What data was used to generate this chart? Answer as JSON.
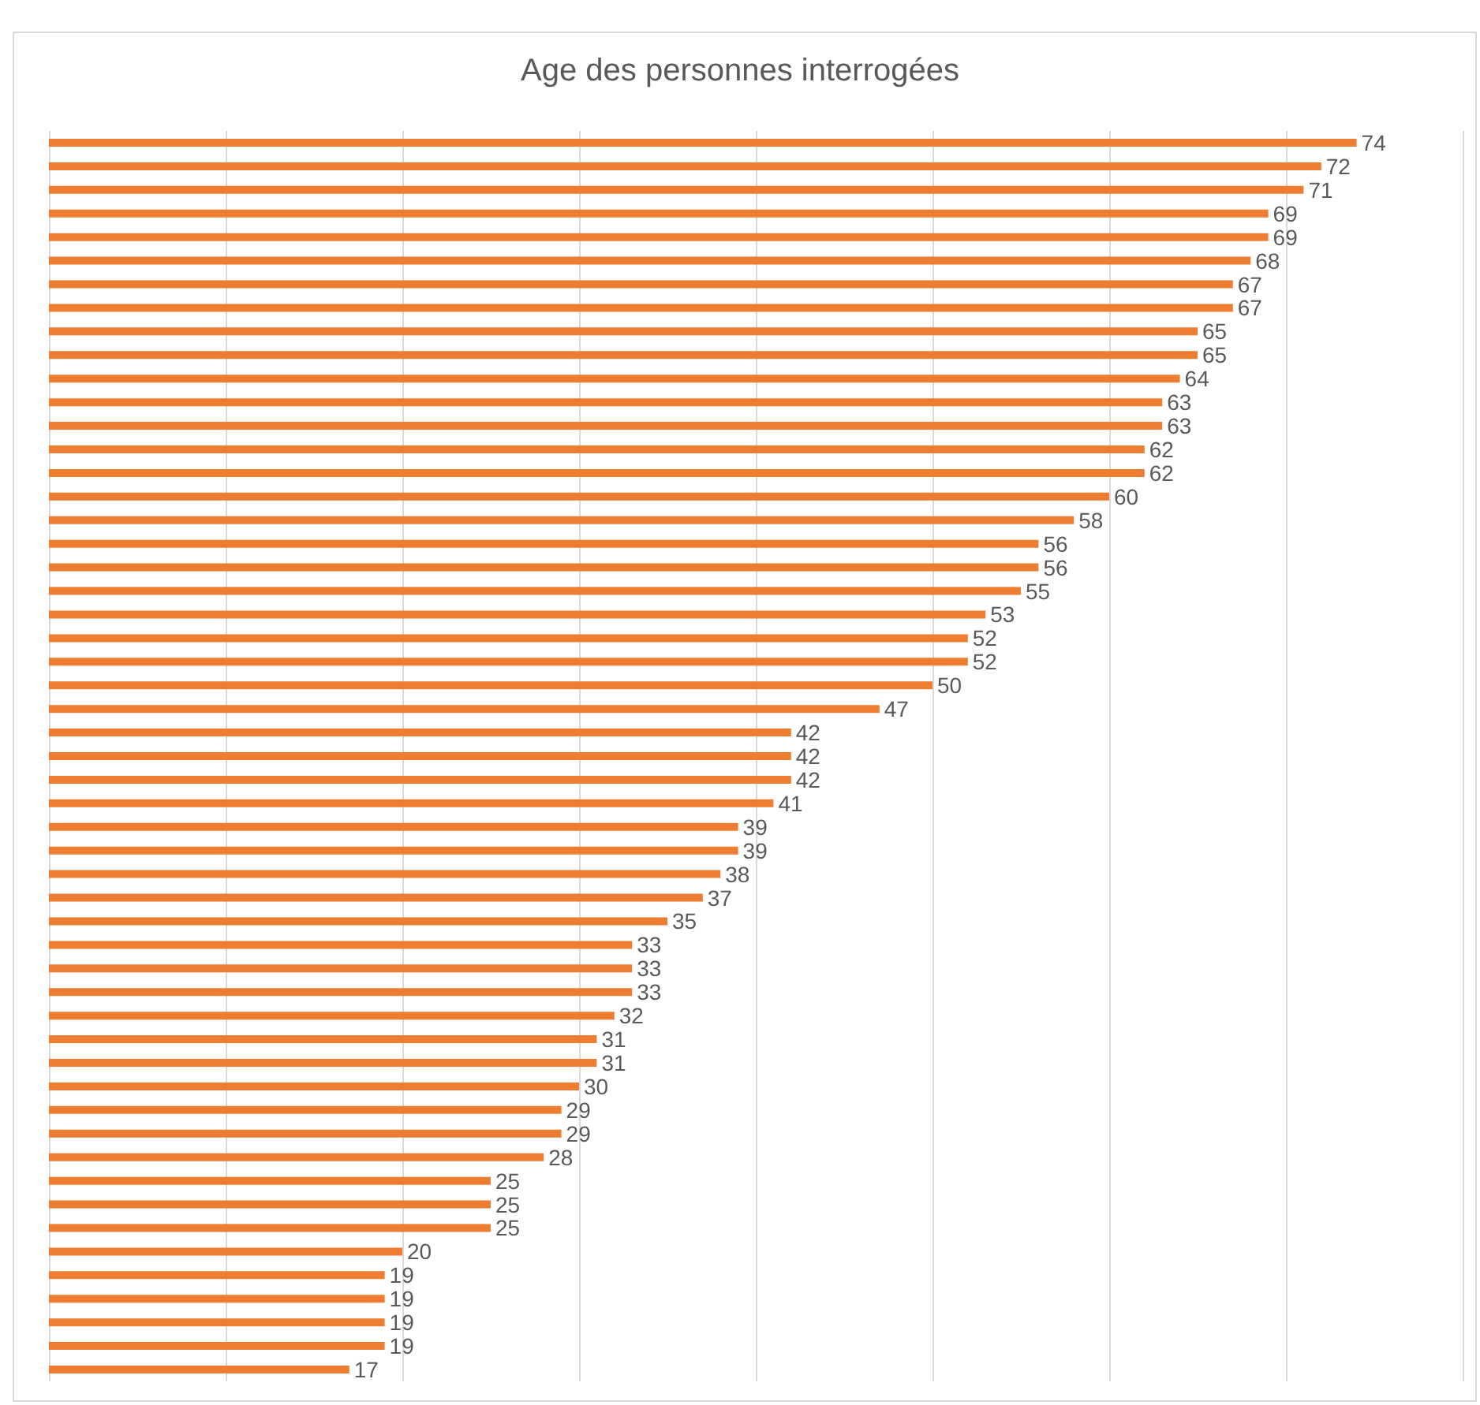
{
  "chart_data": {
    "type": "bar",
    "orientation": "horizontal",
    "title": "Age des personnes interrogées",
    "categories": [
      null,
      null,
      null,
      null,
      null,
      null,
      null,
      null,
      null,
      null,
      null,
      null,
      null,
      null,
      null,
      null,
      null,
      null,
      null,
      null,
      null,
      null,
      null,
      null,
      null,
      null,
      null,
      null,
      null,
      null,
      null,
      null,
      null,
      null,
      null,
      null,
      null,
      null,
      null,
      null,
      null,
      null,
      null,
      null,
      null,
      null,
      null,
      null,
      null,
      null,
      null,
      null,
      null
    ],
    "values": [
      74,
      72,
      71,
      69,
      69,
      68,
      67,
      67,
      65,
      65,
      64,
      63,
      63,
      62,
      62,
      60,
      58,
      56,
      56,
      55,
      53,
      52,
      52,
      50,
      47,
      42,
      42,
      42,
      41,
      39,
      39,
      38,
      37,
      35,
      33,
      33,
      33,
      32,
      31,
      31,
      30,
      29,
      29,
      28,
      25,
      25,
      25,
      20,
      19,
      19,
      19,
      19,
      17
    ],
    "color": "#ed7d31",
    "xlim": [
      0,
      80
    ],
    "xticks": [
      {
        "value": 0,
        "label": null
      },
      {
        "value": 10,
        "label": null
      },
      {
        "value": 20,
        "label": null
      },
      {
        "value": 30,
        "label": null
      },
      {
        "value": 40,
        "label": null
      },
      {
        "value": 50,
        "label": null
      },
      {
        "value": 60,
        "label": null
      },
      {
        "value": 70,
        "label": null
      },
      {
        "value": 80,
        "label": null
      }
    ],
    "grid": "x",
    "data_labels": true
  }
}
